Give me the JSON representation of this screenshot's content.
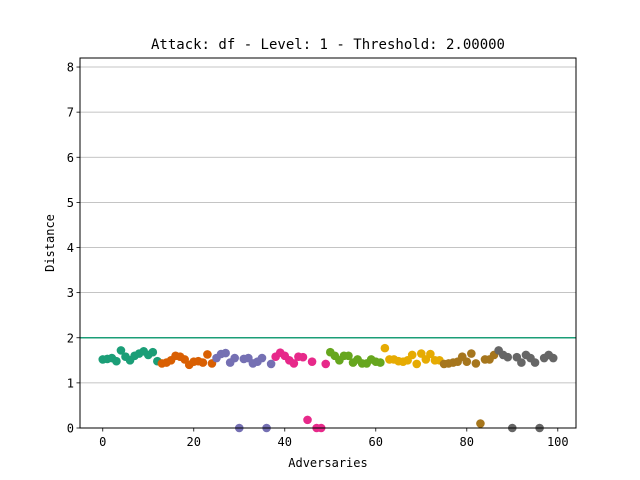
{
  "chart_data": {
    "type": "scatter",
    "title": "Attack: df - Level: 1 - Threshold: 2.00000",
    "xlabel": "Adversaries",
    "ylabel": "Distance",
    "xlim": [
      -5,
      104
    ],
    "ylim": [
      0,
      8.2
    ],
    "xticks": [
      0,
      20,
      40,
      60,
      80,
      100
    ],
    "yticks": [
      0,
      1,
      2,
      3,
      4,
      5,
      6,
      7,
      8
    ],
    "grid": "horizontal",
    "threshold": {
      "value": 2.0,
      "color": "#1b9e77"
    },
    "points": [
      {
        "x": 0,
        "y": 1.52,
        "color": "#1b9e77"
      },
      {
        "x": 1,
        "y": 1.53,
        "color": "#1b9e77"
      },
      {
        "x": 2,
        "y": 1.55,
        "color": "#1b9e77"
      },
      {
        "x": 3,
        "y": 1.48,
        "color": "#1b9e77"
      },
      {
        "x": 4,
        "y": 1.72,
        "color": "#1b9e77"
      },
      {
        "x": 5,
        "y": 1.58,
        "color": "#1b9e77"
      },
      {
        "x": 6,
        "y": 1.5,
        "color": "#1b9e77"
      },
      {
        "x": 7,
        "y": 1.6,
        "color": "#1b9e77"
      },
      {
        "x": 8,
        "y": 1.65,
        "color": "#1b9e77"
      },
      {
        "x": 9,
        "y": 1.7,
        "color": "#1b9e77"
      },
      {
        "x": 10,
        "y": 1.62,
        "color": "#1b9e77"
      },
      {
        "x": 11,
        "y": 1.68,
        "color": "#1b9e77"
      },
      {
        "x": 12,
        "y": 1.48,
        "color": "#1b9e77"
      },
      {
        "x": 13,
        "y": 1.43,
        "color": "#d95f02"
      },
      {
        "x": 14,
        "y": 1.45,
        "color": "#d95f02"
      },
      {
        "x": 15,
        "y": 1.5,
        "color": "#d95f02"
      },
      {
        "x": 16,
        "y": 1.6,
        "color": "#d95f02"
      },
      {
        "x": 17,
        "y": 1.58,
        "color": "#d95f02"
      },
      {
        "x": 18,
        "y": 1.52,
        "color": "#d95f02"
      },
      {
        "x": 19,
        "y": 1.4,
        "color": "#d95f02"
      },
      {
        "x": 20,
        "y": 1.47,
        "color": "#d95f02"
      },
      {
        "x": 21,
        "y": 1.48,
        "color": "#d95f02"
      },
      {
        "x": 22,
        "y": 1.45,
        "color": "#d95f02"
      },
      {
        "x": 23,
        "y": 1.63,
        "color": "#d95f02"
      },
      {
        "x": 24,
        "y": 1.43,
        "color": "#d95f02"
      },
      {
        "x": 25,
        "y": 1.55,
        "color": "#7570b3"
      },
      {
        "x": 26,
        "y": 1.64,
        "color": "#7570b3"
      },
      {
        "x": 27,
        "y": 1.66,
        "color": "#7570b3"
      },
      {
        "x": 28,
        "y": 1.45,
        "color": "#7570b3"
      },
      {
        "x": 29,
        "y": 1.55,
        "color": "#7570b3"
      },
      {
        "x": 30,
        "y": 0.0,
        "color": "#7570b3"
      },
      {
        "x": 31,
        "y": 1.53,
        "color": "#7570b3"
      },
      {
        "x": 32,
        "y": 1.55,
        "color": "#7570b3"
      },
      {
        "x": 33,
        "y": 1.43,
        "color": "#7570b3"
      },
      {
        "x": 34,
        "y": 1.47,
        "color": "#7570b3"
      },
      {
        "x": 35,
        "y": 1.55,
        "color": "#7570b3"
      },
      {
        "x": 36,
        "y": 0.0,
        "color": "#7570b3"
      },
      {
        "x": 37,
        "y": 1.42,
        "color": "#7570b3"
      },
      {
        "x": 38,
        "y": 1.58,
        "color": "#e7298a"
      },
      {
        "x": 39,
        "y": 1.67,
        "color": "#e7298a"
      },
      {
        "x": 40,
        "y": 1.6,
        "color": "#e7298a"
      },
      {
        "x": 41,
        "y": 1.5,
        "color": "#e7298a"
      },
      {
        "x": 42,
        "y": 1.43,
        "color": "#e7298a"
      },
      {
        "x": 43,
        "y": 1.58,
        "color": "#e7298a"
      },
      {
        "x": 44,
        "y": 1.57,
        "color": "#e7298a"
      },
      {
        "x": 45,
        "y": 0.18,
        "color": "#e7298a"
      },
      {
        "x": 46,
        "y": 1.47,
        "color": "#e7298a"
      },
      {
        "x": 47,
        "y": 0.0,
        "color": "#e7298a"
      },
      {
        "x": 48,
        "y": 0.0,
        "color": "#e7298a"
      },
      {
        "x": 49,
        "y": 1.42,
        "color": "#e7298a"
      },
      {
        "x": 50,
        "y": 1.68,
        "color": "#66a61e"
      },
      {
        "x": 51,
        "y": 1.6,
        "color": "#66a61e"
      },
      {
        "x": 52,
        "y": 1.5,
        "color": "#66a61e"
      },
      {
        "x": 53,
        "y": 1.6,
        "color": "#66a61e"
      },
      {
        "x": 54,
        "y": 1.6,
        "color": "#66a61e"
      },
      {
        "x": 55,
        "y": 1.45,
        "color": "#66a61e"
      },
      {
        "x": 56,
        "y": 1.52,
        "color": "#66a61e"
      },
      {
        "x": 57,
        "y": 1.43,
        "color": "#66a61e"
      },
      {
        "x": 58,
        "y": 1.43,
        "color": "#66a61e"
      },
      {
        "x": 59,
        "y": 1.52,
        "color": "#66a61e"
      },
      {
        "x": 60,
        "y": 1.47,
        "color": "#66a61e"
      },
      {
        "x": 61,
        "y": 1.45,
        "color": "#66a61e"
      },
      {
        "x": 62,
        "y": 1.77,
        "color": "#e6ab02"
      },
      {
        "x": 63,
        "y": 1.52,
        "color": "#e6ab02"
      },
      {
        "x": 64,
        "y": 1.52,
        "color": "#e6ab02"
      },
      {
        "x": 65,
        "y": 1.48,
        "color": "#e6ab02"
      },
      {
        "x": 66,
        "y": 1.47,
        "color": "#e6ab02"
      },
      {
        "x": 67,
        "y": 1.5,
        "color": "#e6ab02"
      },
      {
        "x": 68,
        "y": 1.62,
        "color": "#e6ab02"
      },
      {
        "x": 69,
        "y": 1.42,
        "color": "#e6ab02"
      },
      {
        "x": 70,
        "y": 1.65,
        "color": "#e6ab02"
      },
      {
        "x": 71,
        "y": 1.52,
        "color": "#e6ab02"
      },
      {
        "x": 72,
        "y": 1.64,
        "color": "#e6ab02"
      },
      {
        "x": 73,
        "y": 1.5,
        "color": "#e6ab02"
      },
      {
        "x": 74,
        "y": 1.5,
        "color": "#e6ab02"
      },
      {
        "x": 75,
        "y": 1.42,
        "color": "#a6761d"
      },
      {
        "x": 76,
        "y": 1.43,
        "color": "#a6761d"
      },
      {
        "x": 77,
        "y": 1.45,
        "color": "#a6761d"
      },
      {
        "x": 78,
        "y": 1.47,
        "color": "#a6761d"
      },
      {
        "x": 79,
        "y": 1.58,
        "color": "#a6761d"
      },
      {
        "x": 80,
        "y": 1.47,
        "color": "#a6761d"
      },
      {
        "x": 81,
        "y": 1.65,
        "color": "#a6761d"
      },
      {
        "x": 82,
        "y": 1.43,
        "color": "#a6761d"
      },
      {
        "x": 83,
        "y": 0.1,
        "color": "#a6761d"
      },
      {
        "x": 84,
        "y": 1.52,
        "color": "#a6761d"
      },
      {
        "x": 85,
        "y": 1.52,
        "color": "#a6761d"
      },
      {
        "x": 86,
        "y": 1.62,
        "color": "#a6761d"
      },
      {
        "x": 87,
        "y": 1.72,
        "color": "#666666"
      },
      {
        "x": 88,
        "y": 1.62,
        "color": "#666666"
      },
      {
        "x": 89,
        "y": 1.57,
        "color": "#666666"
      },
      {
        "x": 90,
        "y": 0.0,
        "color": "#666666"
      },
      {
        "x": 91,
        "y": 1.57,
        "color": "#666666"
      },
      {
        "x": 92,
        "y": 1.45,
        "color": "#666666"
      },
      {
        "x": 93,
        "y": 1.62,
        "color": "#666666"
      },
      {
        "x": 94,
        "y": 1.55,
        "color": "#666666"
      },
      {
        "x": 95,
        "y": 1.45,
        "color": "#666666"
      },
      {
        "x": 96,
        "y": 0.0,
        "color": "#666666"
      },
      {
        "x": 97,
        "y": 1.55,
        "color": "#666666"
      },
      {
        "x": 98,
        "y": 1.62,
        "color": "#666666"
      },
      {
        "x": 99,
        "y": 1.55,
        "color": "#666666"
      }
    ]
  }
}
